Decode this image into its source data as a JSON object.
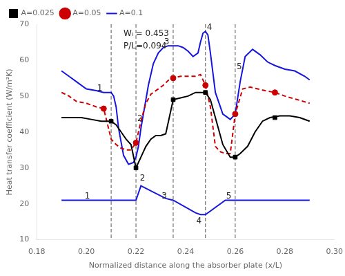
{
  "chart_data": {
    "type": "line",
    "xlabel": "Normalized distance along the absorber plate (x/L)",
    "ylabel": "Heat transfer coefficient (W/m²K)",
    "xlim": [
      0.18,
      0.3
    ],
    "ylim": [
      10,
      70
    ],
    "xticks": [
      0.18,
      {
        "value": 0.2,
        "label": "0.20"
      },
      0.22,
      0.24,
      0.26,
      0.28,
      {
        "value": 0.3,
        "label": "0.30"
      }
    ],
    "yticks": [
      10,
      20,
      30,
      40,
      50,
      60,
      70
    ],
    "grid": false,
    "legend": "upper left",
    "vlines": [
      0.21,
      0.22,
      0.235,
      0.248,
      0.26
    ],
    "series": [
      {
        "color": "#1515dd",
        "line_style": "solid",
        "x": [
          0.19,
          0.205,
          0.21,
          0.21,
          0.218,
          0.22,
          0.222,
          0.222,
          0.232,
          0.235,
          0.235,
          0.244,
          0.246,
          0.248,
          0.248,
          0.256,
          0.26,
          0.26,
          0.29
        ],
        "values": [
          21.0,
          21.0,
          21.0,
          21.0,
          21.0,
          21.0,
          25.0,
          25.0,
          21.5,
          21.0,
          21.0,
          17.5,
          17.0,
          17.0,
          17.0,
          21.0,
          21.0,
          21.0,
          21.0
        ]
      },
      {
        "name": "A=0.025",
        "color": "#000000",
        "line_style": "solid",
        "marker": "square",
        "x": [
          0.19,
          0.194,
          0.198,
          0.202,
          0.206,
          0.21,
          0.212,
          0.214,
          0.216,
          0.218,
          0.22,
          0.222,
          0.224,
          0.226,
          0.228,
          0.23,
          0.232,
          0.235,
          0.238,
          0.241,
          0.244,
          0.246,
          0.248,
          0.25,
          0.252,
          0.255,
          0.258,
          0.26,
          0.262,
          0.265,
          0.268,
          0.271,
          0.274,
          0.278,
          0.282,
          0.286,
          0.29
        ],
        "values": [
          44.0,
          44.0,
          44.0,
          43.5,
          43.0,
          43.0,
          42.0,
          40.0,
          38.0,
          36.5,
          30.0,
          33.0,
          36.0,
          38.0,
          39.0,
          39.0,
          39.5,
          49.0,
          49.5,
          50.0,
          51.0,
          51.0,
          51.0,
          49.0,
          44.0,
          36.5,
          33.0,
          33.0,
          34.0,
          36.0,
          40.0,
          43.0,
          44.0,
          44.5,
          44.5,
          44.0,
          43.0
        ],
        "markers": {
          "x": [
            0.21,
            0.22,
            0.235,
            0.248,
            0.26,
            0.276
          ],
          "values": [
            43.0,
            30.0,
            49.0,
            51.0,
            33.0,
            44.0
          ]
        }
      },
      {
        "name": "A=0.05",
        "color": "#cc0000",
        "line_style": "dashed",
        "marker": "circle",
        "x": [
          0.19,
          0.193,
          0.196,
          0.2,
          0.204,
          0.207,
          0.21,
          0.212,
          0.214,
          0.216,
          0.218,
          0.22,
          0.222,
          0.224,
          0.226,
          0.228,
          0.231,
          0.234,
          0.235,
          0.238,
          0.241,
          0.244,
          0.246,
          0.248,
          0.25,
          0.252,
          0.254,
          0.256,
          0.258,
          0.26,
          0.263,
          0.266,
          0.269,
          0.272,
          0.276,
          0.28,
          0.285,
          0.29
        ],
        "values": [
          51.0,
          50.0,
          48.5,
          48.0,
          47.0,
          46.5,
          38.0,
          36.5,
          35.5,
          35.0,
          35.0,
          37.0,
          43.0,
          48.0,
          50.5,
          51.5,
          53.0,
          55.0,
          55.0,
          55.5,
          55.5,
          55.5,
          56.0,
          53.0,
          47.0,
          36.0,
          34.5,
          34.0,
          34.0,
          45.0,
          52.0,
          52.5,
          52.0,
          51.5,
          51.0,
          50.0,
          49.0,
          48.0
        ],
        "markers": {
          "x": [
            0.207,
            0.22,
            0.235,
            0.248,
            0.26,
            0.276
          ],
          "values": [
            46.5,
            37.0,
            55.0,
            53.0,
            45.0,
            51.0
          ]
        }
      },
      {
        "name": "A=0.1",
        "color": "#1515dd",
        "line_style": "solid",
        "x": [
          0.19,
          0.193,
          0.196,
          0.2,
          0.204,
          0.207,
          0.209,
          0.21,
          0.211,
          0.212,
          0.213,
          0.215,
          0.217,
          0.219,
          0.22,
          0.221,
          0.222,
          0.223,
          0.225,
          0.227,
          0.229,
          0.231,
          0.233,
          0.235,
          0.237,
          0.239,
          0.241,
          0.243,
          0.245,
          0.246,
          0.247,
          0.248,
          0.249,
          0.25,
          0.252,
          0.255,
          0.258,
          0.26,
          0.262,
          0.264,
          0.267,
          0.27,
          0.273,
          0.276,
          0.28,
          0.284,
          0.288,
          0.29
        ],
        "values": [
          57.0,
          55.5,
          54.0,
          52.0,
          51.5,
          51.0,
          51.0,
          51.0,
          50.0,
          47.0,
          41.0,
          33.5,
          31.0,
          31.5,
          33.0,
          36.0,
          41.0,
          45.0,
          53.0,
          59.0,
          62.0,
          63.5,
          64.0,
          64.0,
          64.0,
          63.5,
          62.5,
          61.0,
          62.0,
          65.0,
          67.5,
          68.0,
          67.0,
          62.0,
          51.0,
          45.0,
          43.5,
          45.0,
          54.0,
          61.0,
          63.0,
          61.5,
          59.5,
          58.5,
          57.5,
          57.0,
          55.5,
          54.5
        ]
      }
    ],
    "annotations": [
      {
        "text": "1",
        "x": 0.207,
        "y": 51.5
      },
      {
        "text": "2",
        "x": 0.22,
        "y": 43.0
      },
      {
        "text": "3",
        "x": 0.234,
        "y": 64.5
      },
      {
        "text": "4",
        "x": 0.248,
        "y": 68.5
      },
      {
        "text": "5",
        "x": 0.26,
        "y": 57.5
      },
      {
        "text": "1",
        "x": 0.202,
        "y": 21.5
      },
      {
        "text": "2",
        "x": 0.221,
        "y": 26.5
      },
      {
        "text": "3",
        "x": 0.233,
        "y": 21.5
      },
      {
        "text": "4",
        "x": 0.247,
        "y": 14.5
      },
      {
        "text": "5",
        "x": 0.259,
        "y": 21.5
      }
    ],
    "notes": [
      {
        "text": "Wₗ = 0.453",
        "x": 0.215,
        "y": 68.5
      },
      {
        "text": "P/L=0.094",
        "x": 0.215,
        "y": 65.0
      }
    ]
  }
}
